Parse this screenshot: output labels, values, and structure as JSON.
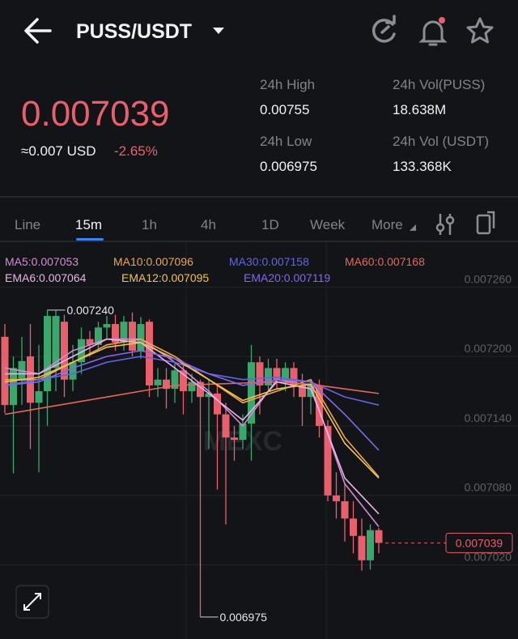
{
  "header": {
    "pair": "PUSS/USDT"
  },
  "ticker": {
    "last_price": "0.007039",
    "usd_price": "≈0.007 USD",
    "change": "-2.65%",
    "stats": [
      {
        "label": "24h High",
        "value": "0.00755"
      },
      {
        "label": "24h Vol(PUSS)",
        "value": "18.638M"
      },
      {
        "label": "24h Low",
        "value": "0.006975"
      },
      {
        "label": "24h Vol (USDT)",
        "value": "133.368K"
      }
    ]
  },
  "tabs": [
    "Line",
    "15m",
    "1h",
    "4h",
    "1D",
    "Week",
    "More"
  ],
  "chart_data": {
    "type": "candlestick",
    "watermark": "MEXC",
    "up_color": "#3aa76d",
    "down_color": "#e9606c",
    "ylim": [
      0.006956,
      0.007298
    ],
    "yticks": [
      {
        "value": 0.00726,
        "label": "0.007260"
      },
      {
        "value": 0.0072,
        "label": "0.007200"
      },
      {
        "value": 0.00714,
        "label": "0.007140"
      },
      {
        "value": 0.00708,
        "label": "0.007080"
      },
      {
        "value": 0.00702,
        "label": "0.007020"
      }
    ],
    "candles": {
      "open": [
        0.007217,
        0.007158,
        0.007179,
        0.0072,
        0.00716,
        0.00717,
        0.00719,
        0.00723,
        0.00718,
        0.007195,
        0.007215,
        0.00721,
        0.007225,
        0.007228,
        0.007212,
        0.00723,
        0.007205,
        0.00723,
        0.007175,
        0.00718,
        0.007172,
        0.007188,
        0.00717,
        0.007178,
        0.007165,
        0.007168,
        0.00715,
        0.00713,
        0.007128,
        0.007142,
        0.007195,
        0.007175,
        0.00719,
        0.00718,
        0.00719,
        0.007175,
        0.007165,
        0.007175,
        0.00714,
        0.00708,
        0.007075,
        0.00706,
        0.007045,
        0.007024,
        0.00705
      ],
      "close": [
        0.007158,
        0.00719,
        0.007196,
        0.00716,
        0.00717,
        0.007235,
        0.007235,
        0.00718,
        0.007195,
        0.007215,
        0.00721,
        0.007225,
        0.007228,
        0.007212,
        0.00723,
        0.007205,
        0.007228,
        0.007175,
        0.00718,
        0.007172,
        0.007188,
        0.00717,
        0.007178,
        0.007165,
        0.007168,
        0.00715,
        0.00713,
        0.007128,
        0.007142,
        0.007195,
        0.007175,
        0.00719,
        0.00718,
        0.00719,
        0.007175,
        0.007165,
        0.007175,
        0.00714,
        0.00708,
        0.007075,
        0.00706,
        0.007045,
        0.007024,
        0.00705,
        0.007039
      ],
      "high": [
        0.007228,
        0.0072,
        0.007217,
        0.007228,
        0.00721,
        0.00724,
        0.00724,
        0.007236,
        0.00721,
        0.007225,
        0.007222,
        0.00723,
        0.007235,
        0.007236,
        0.007235,
        0.007238,
        0.007234,
        0.007232,
        0.00719,
        0.00719,
        0.007195,
        0.007192,
        0.007185,
        0.00718,
        0.00718,
        0.007175,
        0.00716,
        0.00714,
        0.00715,
        0.00721,
        0.0072,
        0.007198,
        0.007198,
        0.007195,
        0.007195,
        0.007185,
        0.00718,
        0.00718,
        0.007145,
        0.0071,
        0.00709,
        0.007075,
        0.00706,
        0.007055,
        0.007052
      ],
      "low": [
        0.007151,
        0.007099,
        0.007158,
        0.00712,
        0.0071,
        0.00714,
        0.00717,
        0.007165,
        0.00717,
        0.007185,
        0.0072,
        0.007205,
        0.007215,
        0.007205,
        0.007205,
        0.0072,
        0.007198,
        0.007165,
        0.007165,
        0.007155,
        0.00716,
        0.00715,
        0.00716,
        0.006975,
        0.00712,
        0.007085,
        0.007055,
        0.00711,
        0.00712,
        0.00711,
        0.00715,
        0.00717,
        0.007172,
        0.00717,
        0.007165,
        0.00714,
        0.00715,
        0.00713,
        0.007075,
        0.00706,
        0.00704,
        0.00703,
        0.007015,
        0.007016,
        0.00703
      ]
    },
    "line_x": [
      0,
      4,
      8,
      12,
      16,
      20,
      24,
      28,
      32,
      36,
      40,
      44
    ],
    "series": [
      {
        "name": "MA5:0.007053",
        "color": "#d58ad6",
        "values": [
          0.00719,
          0.007185,
          0.007205,
          0.007215,
          0.007215,
          0.007195,
          0.00717,
          0.00714,
          0.00718,
          0.007175,
          0.00709,
          0.007053
        ]
      },
      {
        "name": "MA10:0.007096",
        "color": "#eda64f",
        "values": [
          0.00718,
          0.00718,
          0.007195,
          0.00721,
          0.007215,
          0.0072,
          0.00718,
          0.00716,
          0.00717,
          0.00718,
          0.00713,
          0.007096
        ]
      },
      {
        "name": "MA30:0.007158",
        "color": "#6464e6",
        "values": [
          0.007175,
          0.00718,
          0.007185,
          0.007195,
          0.0072,
          0.007195,
          0.007185,
          0.00718,
          0.007182,
          0.007178,
          0.007165,
          0.007158
        ]
      },
      {
        "name": "MA60:0.007168",
        "color": "#e5675b",
        "values": [
          0.00715,
          0.007155,
          0.00716,
          0.007165,
          0.00717,
          0.007175,
          0.007176,
          0.007177,
          0.007178,
          0.007176,
          0.007172,
          0.007168
        ]
      },
      {
        "name": "EMA6:0.007064",
        "color": "#e9b3e6",
        "values": [
          0.007185,
          0.007185,
          0.0072,
          0.007215,
          0.007212,
          0.00719,
          0.007168,
          0.007145,
          0.007178,
          0.007172,
          0.007095,
          0.007064
        ]
      },
      {
        "name": "EMA12:0.007095",
        "color": "#f2c34f",
        "values": [
          0.007178,
          0.007182,
          0.007195,
          0.007208,
          0.007212,
          0.007198,
          0.00718,
          0.007162,
          0.007172,
          0.007176,
          0.007125,
          0.007095
        ]
      },
      {
        "name": "EMA20:0.007119",
        "color": "#8566ee",
        "values": [
          0.007175,
          0.007178,
          0.00719,
          0.0072,
          0.007205,
          0.007198,
          0.007185,
          0.007175,
          0.00718,
          0.007178,
          0.00715,
          0.007119
        ]
      }
    ],
    "high_label": {
      "value": 0.00724,
      "label": "0.007240"
    },
    "low_label": {
      "value": 0.006975,
      "label": "0.006975"
    },
    "last_label": {
      "value": 0.007039,
      "label": "0.007039"
    }
  }
}
